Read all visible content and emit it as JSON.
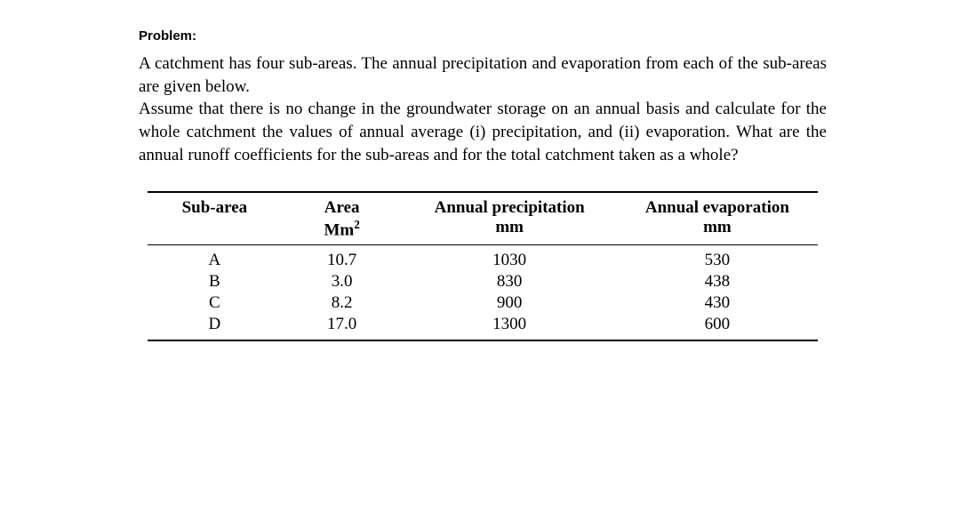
{
  "label": "Problem:",
  "paragraph": "A catchment has four sub-areas. The annual precipitation and evaporation from each of the sub-areas are given below.\nAssume that there is no change in the groundwater storage on an annual basis and calculate for the whole catchment the values of annual average (i) precipitation, and (ii) evaporation. What are the annual runoff coefficients for the sub-areas and for the total catchment taken as a whole?",
  "table": {
    "columns": [
      {
        "header": "Sub-area",
        "unit": ""
      },
      {
        "header": "Area",
        "unit": "Mm²"
      },
      {
        "header": "Annual precipitation",
        "unit": "mm"
      },
      {
        "header": "Annual evaporation",
        "unit": "mm"
      }
    ],
    "rows": [
      [
        "A",
        "10.7",
        "1030",
        "530"
      ],
      [
        "B",
        "3.0",
        "830",
        "438"
      ],
      [
        "C",
        "8.2",
        "900",
        "430"
      ],
      [
        "D",
        "17.0",
        "1300",
        "600"
      ]
    ],
    "border_color": "#000000",
    "font_family": "Times New Roman",
    "header_fontsize": 19,
    "cell_fontsize": 19,
    "background_color": "#ffffff"
  }
}
